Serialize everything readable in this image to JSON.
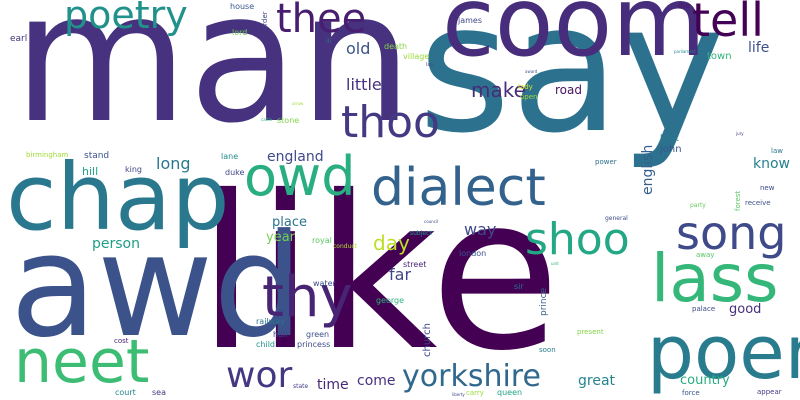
{
  "background": "#ffffff",
  "words": [
    {
      "text": "man",
      "color": "#46327e"
    },
    {
      "text": "say",
      "color": "#2c728e"
    },
    {
      "text": "like",
      "color": "#440154"
    },
    {
      "text": "awd",
      "color": "#3b528b"
    },
    {
      "text": "coom",
      "color": "#472d7b"
    },
    {
      "text": "chap",
      "color": "#2a788e"
    },
    {
      "text": "poem",
      "color": "#287c8e"
    },
    {
      "text": "dialect",
      "color": "#33638d"
    },
    {
      "text": "lass",
      "color": "#35b779"
    },
    {
      "text": "owd",
      "color": "#28ae80"
    },
    {
      "text": "neet",
      "color": "#3dbc74"
    },
    {
      "text": "thy",
      "color": "#482475"
    },
    {
      "text": "song",
      "color": "#3e4a89"
    },
    {
      "text": "shoo",
      "color": "#22a884"
    },
    {
      "text": "thoo",
      "color": "#443a83"
    },
    {
      "text": "tell",
      "color": "#440256"
    },
    {
      "text": "thee",
      "color": "#481f70"
    },
    {
      "text": "poetry",
      "color": "#21918c"
    },
    {
      "text": "yorkshire",
      "color": "#31688e"
    },
    {
      "text": "wor",
      "color": "#453781"
    },
    {
      "text": "make",
      "color": "#472c7a"
    },
    {
      "text": "day",
      "color": "#bddf26"
    },
    {
      "text": "old",
      "color": "#3b528b"
    },
    {
      "text": "little",
      "color": "#46327e"
    },
    {
      "text": "long",
      "color": "#2a788e"
    },
    {
      "text": "england",
      "color": "#3e4a89"
    },
    {
      "text": "person",
      "color": "#1f9e89"
    },
    {
      "text": "place",
      "color": "#2c728e"
    },
    {
      "text": "year",
      "color": "#75d054"
    },
    {
      "text": "way",
      "color": "#3e4989"
    },
    {
      "text": "far",
      "color": "#414487"
    },
    {
      "text": "time",
      "color": "#482878"
    },
    {
      "text": "come",
      "color": "#46307e"
    },
    {
      "text": "great",
      "color": "#25848e"
    },
    {
      "text": "country",
      "color": "#27ad81"
    },
    {
      "text": "life",
      "color": "#3b528b"
    },
    {
      "text": "know",
      "color": "#26818e"
    },
    {
      "text": "good",
      "color": "#472f7d"
    },
    {
      "text": "english",
      "color": "#355f8d"
    },
    {
      "text": "road",
      "color": "#471365"
    },
    {
      "text": "town",
      "color": "#2fb47c"
    },
    {
      "text": "john",
      "color": "#39568c"
    },
    {
      "text": "look",
      "color": "#2a788e"
    },
    {
      "text": "hill",
      "color": "#1fa188"
    },
    {
      "text": "stand",
      "color": "#3b528b"
    },
    {
      "text": "king",
      "color": "#404688"
    },
    {
      "text": "earl",
      "color": "#46327e"
    },
    {
      "text": "house",
      "color": "#38598c"
    },
    {
      "text": "lord",
      "color": "#6ece58"
    },
    {
      "text": "order",
      "color": "#404588"
    },
    {
      "text": "james",
      "color": "#3f4788"
    },
    {
      "text": "die",
      "color": "#481668"
    },
    {
      "text": "death",
      "color": "#89d548"
    },
    {
      "text": "village",
      "color": "#9bd93c"
    },
    {
      "text": "lady",
      "color": "#d2e21b"
    },
    {
      "text": "open",
      "color": "#a0da39"
    },
    {
      "text": "stone",
      "color": "#7fd34e"
    },
    {
      "text": "lane",
      "color": "#23898e"
    },
    {
      "text": "duke",
      "color": "#404588"
    },
    {
      "text": "birmingham",
      "color": "#a2da37"
    },
    {
      "text": "royal",
      "color": "#5ec962"
    },
    {
      "text": "conduct",
      "color": "#b5de2b"
    },
    {
      "text": "subject",
      "color": "#1f988b"
    },
    {
      "text": "london",
      "color": "#3b528b"
    },
    {
      "text": "street",
      "color": "#482677"
    },
    {
      "text": "water",
      "color": "#3e4c8a"
    },
    {
      "text": "railway",
      "color": "#2a768e"
    },
    {
      "text": "hall",
      "color": "#414487"
    },
    {
      "text": "green",
      "color": "#3b528b"
    },
    {
      "text": "child",
      "color": "#1f968b"
    },
    {
      "text": "princess",
      "color": "#3e4989"
    },
    {
      "text": "george",
      "color": "#2fb47c"
    },
    {
      "text": "church",
      "color": "#3f4889"
    },
    {
      "text": "prince",
      "color": "#33638d"
    },
    {
      "text": "sir",
      "color": "#2d708e"
    },
    {
      "text": "present",
      "color": "#84d44b"
    },
    {
      "text": "soon",
      "color": "#287d8e"
    },
    {
      "text": "queen",
      "color": "#20a386"
    },
    {
      "text": "carry",
      "color": "#9dd93b"
    },
    {
      "text": "state",
      "color": "#433e85"
    },
    {
      "text": "sea",
      "color": "#453882"
    },
    {
      "text": "court",
      "color": "#26828e"
    },
    {
      "text": "cost",
      "color": "#482475"
    },
    {
      "text": "power",
      "color": "#2e6f8e"
    },
    {
      "text": "law",
      "color": "#2a778e"
    },
    {
      "text": "forest",
      "color": "#5ac864"
    },
    {
      "text": "new",
      "color": "#3f4889"
    },
    {
      "text": "receive",
      "color": "#3b528b"
    },
    {
      "text": "party",
      "color": "#65cb5e"
    },
    {
      "text": "general",
      "color": "#3e4c8a"
    },
    {
      "text": "away",
      "color": "#54c568"
    },
    {
      "text": "palace",
      "color": "#3f4889"
    },
    {
      "text": "force",
      "color": "#3a548c"
    },
    {
      "text": "appear",
      "color": "#433e85"
    },
    {
      "text": "iii",
      "color": "#2a788e"
    },
    {
      "text": "lay",
      "color": "#3e4c8a"
    },
    {
      "text": "parliament",
      "color": "#23888e"
    },
    {
      "text": "award",
      "color": "#3b528b"
    },
    {
      "text": "cattle",
      "color": "#27ad81"
    },
    {
      "text": "arrow",
      "color": "#a5db36"
    },
    {
      "text": "council",
      "color": "#3e4989"
    },
    {
      "text": "unit",
      "color": "#2fb47c"
    },
    {
      "text": "liberty",
      "color": "#3e4989"
    },
    {
      "text": "jury",
      "color": "#46327e"
    }
  ]
}
